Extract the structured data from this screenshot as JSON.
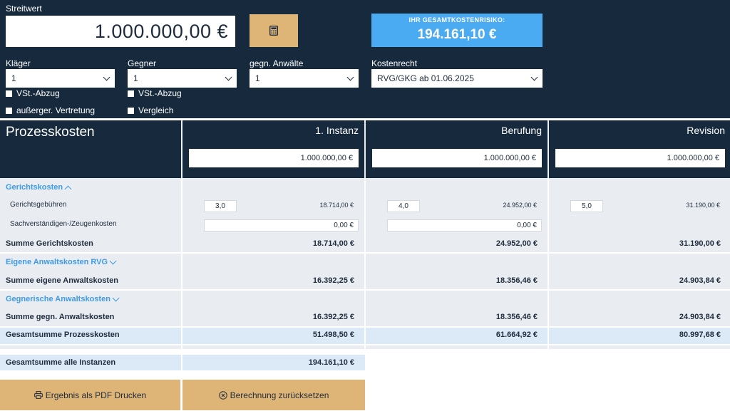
{
  "streitwert": {
    "label": "Streitwert",
    "value": "1.000.000,00 €"
  },
  "calc_button": {
    "icon": "calculator-icon"
  },
  "risk": {
    "title": "IHR GESAMTKOSTENRISIKO:",
    "value": "194.161,10 €"
  },
  "selects": {
    "klaeger": {
      "label": "Kläger",
      "value": "1"
    },
    "gegner": {
      "label": "Gegner",
      "value": "1"
    },
    "anwaelte": {
      "label": "gegn. Anwälte",
      "value": "1"
    },
    "kostenrecht": {
      "label": "Kostenrecht",
      "value": "RVG/GKG ab 01.06.2025"
    }
  },
  "checkboxes": {
    "vst_klaeger": "VSt.-Abzug",
    "vst_gegner": "VSt.-Abzug",
    "ausserger": "außerger. Vertretung",
    "vergleich": "Vergleich"
  },
  "table": {
    "title": "Prozesskosten",
    "instances": [
      {
        "name": "1. Instanz",
        "streitwert": "1.000.000,00 €",
        "faktor": "3,0",
        "gebuehren": "18.714,00 €",
        "sachv": "0,00 €",
        "summe_gericht": "18.714,00 €",
        "summe_eigene": "16.392,25 €",
        "summe_gegn": "16.392,25 €",
        "gesamt": "51.498,50 €"
      },
      {
        "name": "Berufung",
        "streitwert": "1.000.000,00 €",
        "faktor": "4,0",
        "gebuehren": "24.952,00 €",
        "sachv": "0,00 €",
        "summe_gericht": "24.952,00 €",
        "summe_eigene": "18.356,46 €",
        "summe_gegn": "18.356,46 €",
        "gesamt": "61.664,92 €"
      },
      {
        "name": "Revision",
        "streitwert": "1.000.000,00 €",
        "faktor": "5,0",
        "gebuehren": "31.190,00 €",
        "summe_gericht": "31.190,00 €",
        "summe_eigene": "24.903,84 €",
        "summe_gegn": "24.903,84 €",
        "gesamt": "80.997,68 €"
      }
    ],
    "labels": {
      "gerichtskosten": "Gerichtskosten",
      "gerichtsgebuehren": "Gerichtsgebühren",
      "sachverstaendigen": "Sachverständigen-/Zeugenkosten",
      "summe_gericht": "Summe Gerichtskosten",
      "eigene_anwalt": "Eigene Anwaltskosten RVG",
      "summe_eigene": "Summe eigene Anwaltskosten",
      "gegn_anwalt": "Gegnerische Anwaltskosten",
      "summe_gegn": "Summe gegn. Anwaltskosten",
      "gesamt": "Gesamtsumme Prozesskosten"
    }
  },
  "gesamt_alle": {
    "label": "Gesamtsumme alle Instanzen",
    "value": "194.161,10 €"
  },
  "buttons": {
    "pdf": "Ergebnis als PDF Drucken",
    "reset": "Berechnung zurücksetzen"
  },
  "colors": {
    "navy": "#172a3d",
    "accent_blue": "#4aabf2",
    "gold": "#dfb477",
    "link_blue": "#3d9ae6"
  }
}
